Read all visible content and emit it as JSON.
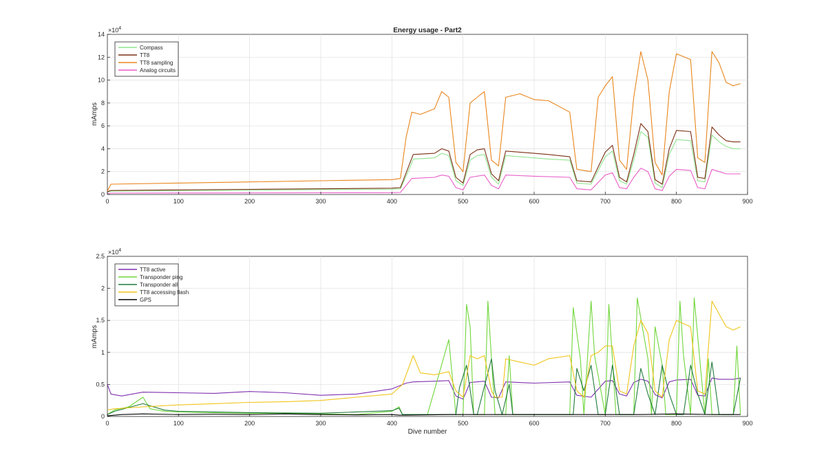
{
  "chart_data": [
    {
      "type": "line",
      "title": "Energy usage - Part2",
      "xlabel": "",
      "ylabel": "mAmps",
      "exponent_label": "×10",
      "exponent_power": "4",
      "xlim": [
        0,
        900
      ],
      "ylim": [
        0,
        140000
      ],
      "xticks": [
        0,
        100,
        200,
        300,
        400,
        500,
        600,
        700,
        800,
        900
      ],
      "yticks": [
        0,
        20000,
        40000,
        60000,
        80000,
        100000,
        120000,
        140000
      ],
      "ytick_labels": [
        "0",
        "2",
        "4",
        "6",
        "8",
        "10",
        "12",
        "14"
      ],
      "grid": true,
      "legend_position": "top-left",
      "series": [
        {
          "name": "Compass",
          "color": "#8fe38f",
          "x": [
            0,
            5,
            100,
            200,
            300,
            400,
            412,
            425,
            430,
            460,
            470,
            480,
            490,
            500,
            510,
            520,
            530,
            540,
            550,
            560,
            580,
            600,
            620,
            650,
            660,
            680,
            700,
            710,
            720,
            730,
            740,
            750,
            760,
            770,
            780,
            790,
            800,
            820,
            830,
            840,
            850,
            860,
            870,
            880,
            890
          ],
          "y": [
            2000,
            3000,
            3300,
            3700,
            4300,
            4500,
            5000,
            23000,
            31000,
            32000,
            36000,
            34000,
            12000,
            8000,
            30000,
            34000,
            35000,
            15000,
            9000,
            34000,
            33000,
            32000,
            31000,
            30000,
            10000,
            9000,
            33000,
            38000,
            12000,
            9000,
            30000,
            55000,
            50000,
            10000,
            6000,
            35000,
            48000,
            47000,
            12000,
            11000,
            52000,
            46000,
            42000,
            40000,
            40000
          ]
        },
        {
          "name": "TT8",
          "color": "#7a2e12",
          "x": [
            0,
            5,
            100,
            200,
            300,
            400,
            412,
            425,
            430,
            460,
            470,
            480,
            490,
            500,
            510,
            520,
            530,
            540,
            550,
            560,
            580,
            600,
            620,
            650,
            660,
            680,
            700,
            710,
            720,
            730,
            740,
            750,
            760,
            770,
            780,
            790,
            800,
            820,
            830,
            840,
            850,
            860,
            870,
            880,
            890
          ],
          "y": [
            2500,
            3500,
            4000,
            4500,
            5000,
            5500,
            6000,
            27000,
            35000,
            36000,
            40000,
            38000,
            15000,
            10000,
            35000,
            39000,
            40000,
            18000,
            12000,
            38000,
            37000,
            36000,
            35000,
            33000,
            12000,
            11000,
            37000,
            43000,
            15000,
            11000,
            35000,
            62000,
            55000,
            13000,
            9000,
            40000,
            56000,
            55000,
            15000,
            14000,
            59000,
            52000,
            47000,
            46000,
            46000
          ]
        },
        {
          "name": "TT8 sampling",
          "color": "#e8851a",
          "x": [
            0,
            5,
            100,
            200,
            300,
            400,
            412,
            420,
            428,
            440,
            460,
            470,
            480,
            490,
            500,
            510,
            520,
            530,
            540,
            550,
            560,
            580,
            600,
            620,
            650,
            660,
            680,
            690,
            700,
            710,
            720,
            730,
            740,
            750,
            760,
            770,
            780,
            790,
            800,
            820,
            830,
            840,
            850,
            860,
            870,
            880,
            890
          ],
          "y": [
            3000,
            9000,
            10000,
            11000,
            12000,
            13000,
            14000,
            50000,
            72000,
            70000,
            75000,
            90000,
            85000,
            28000,
            20000,
            80000,
            85000,
            90000,
            30000,
            25000,
            85000,
            88000,
            83000,
            82000,
            72000,
            22000,
            20000,
            85000,
            95000,
            103000,
            30000,
            22000,
            85000,
            125000,
            100000,
            28000,
            17000,
            90000,
            123000,
            118000,
            32000,
            28000,
            125000,
            115000,
            98000,
            95000,
            97000
          ]
        },
        {
          "name": "Analog circuits",
          "color": "#e85cc8",
          "x": [
            0,
            5,
            100,
            200,
            300,
            400,
            412,
            428,
            460,
            470,
            480,
            490,
            500,
            510,
            530,
            540,
            550,
            560,
            600,
            650,
            660,
            680,
            700,
            710,
            720,
            730,
            740,
            750,
            760,
            770,
            780,
            790,
            800,
            820,
            830,
            840,
            850,
            860,
            870,
            880,
            890
          ],
          "y": [
            800,
            1200,
            1300,
            1400,
            1500,
            1600,
            1800,
            14000,
            15000,
            17000,
            16000,
            6000,
            4000,
            15000,
            17000,
            8000,
            5000,
            17000,
            16000,
            15000,
            5000,
            4000,
            17000,
            19000,
            6000,
            5000,
            15000,
            23000,
            20000,
            5000,
            3500,
            16000,
            22000,
            21000,
            6000,
            5000,
            22000,
            20000,
            18000,
            18000,
            18000
          ]
        }
      ]
    },
    {
      "type": "line",
      "title": "",
      "xlabel": "Dive number",
      "ylabel": "mAmps",
      "exponent_label": "×10",
      "exponent_power": "4",
      "xlim": [
        0,
        900
      ],
      "ylim": [
        0,
        25000
      ],
      "xticks": [
        0,
        100,
        200,
        300,
        400,
        500,
        600,
        700,
        800,
        900
      ],
      "yticks": [
        0,
        5000,
        10000,
        15000,
        20000,
        25000
      ],
      "ytick_labels": [
        "0",
        "0.5",
        "1",
        "1.5",
        "2",
        "2.5"
      ],
      "grid": true,
      "legend_position": "top-left",
      "series": [
        {
          "name": "TT8 active",
          "color": "#7e2fb0",
          "x": [
            0,
            5,
            20,
            50,
            100,
            150,
            200,
            250,
            300,
            350,
            400,
            420,
            430,
            460,
            480,
            490,
            500,
            510,
            530,
            540,
            550,
            560,
            600,
            650,
            660,
            680,
            700,
            710,
            720,
            730,
            740,
            750,
            760,
            770,
            780,
            790,
            800,
            820,
            830,
            840,
            850,
            860,
            880,
            890
          ],
          "y": [
            5000,
            3500,
            3200,
            3800,
            3700,
            3600,
            3900,
            3700,
            3300,
            3500,
            4300,
            5200,
            5400,
            5500,
            5600,
            3200,
            2700,
            5300,
            5500,
            3000,
            2900,
            5400,
            5200,
            5400,
            3300,
            3000,
            5500,
            5600,
            3500,
            3200,
            5300,
            5800,
            5500,
            3400,
            2900,
            5400,
            5700,
            5800,
            3300,
            3200,
            6000,
            5800,
            5800,
            6000
          ]
        },
        {
          "name": "Transponder ping",
          "color": "#6fd63a",
          "x": [
            0,
            10,
            30,
            50,
            60,
            80,
            100,
            150,
            200,
            250,
            300,
            350,
            400,
            410,
            415,
            450,
            480,
            490,
            500,
            505,
            510,
            515,
            530,
            535,
            540,
            545,
            560,
            565,
            570,
            650,
            655,
            665,
            670,
            680,
            685,
            700,
            705,
            710,
            715,
            740,
            745,
            760,
            765,
            770,
            780,
            785,
            800,
            805,
            810,
            820,
            825,
            840,
            845,
            850,
            855,
            880,
            885,
            890
          ],
          "y": [
            300,
            1000,
            1500,
            3000,
            1200,
            800,
            700,
            600,
            500,
            500,
            400,
            300,
            800,
            1500,
            300,
            300,
            12000,
            300,
            300,
            17500,
            14000,
            300,
            300,
            18000,
            9000,
            300,
            300,
            9500,
            300,
            300,
            17000,
            9000,
            300,
            18000,
            9500,
            300,
            17500,
            9000,
            300,
            300,
            18500,
            9000,
            300,
            14000,
            8000,
            300,
            300,
            18000,
            9500,
            300,
            18500,
            300,
            9000,
            300,
            300,
            300,
            11000,
            300
          ]
        },
        {
          "name": "Transponder all",
          "color": "#1f7a3a",
          "x": [
            0,
            10,
            50,
            80,
            100,
            200,
            300,
            400,
            410,
            415,
            490,
            495,
            505,
            515,
            520,
            540,
            545,
            555,
            565,
            570,
            655,
            660,
            670,
            680,
            690,
            700,
            710,
            720,
            740,
            750,
            760,
            770,
            780,
            790,
            800,
            810,
            820,
            830,
            840,
            850,
            860,
            880,
            890
          ],
          "y": [
            300,
            800,
            2000,
            1000,
            800,
            600,
            500,
            900,
            1300,
            300,
            300,
            4500,
            8000,
            300,
            300,
            9000,
            4000,
            300,
            5000,
            300,
            300,
            7500,
            4000,
            8000,
            300,
            300,
            8000,
            300,
            300,
            7500,
            3500,
            300,
            8000,
            3500,
            300,
            300,
            8000,
            3500,
            300,
            8500,
            300,
            300,
            6000
          ]
        },
        {
          "name": "TT8 accessing flash",
          "color": "#f0c419",
          "x": [
            0,
            10,
            50,
            100,
            150,
            200,
            250,
            300,
            350,
            400,
            415,
            430,
            440,
            460,
            480,
            490,
            500,
            510,
            520,
            530,
            540,
            545,
            555,
            560,
            580,
            600,
            620,
            650,
            660,
            670,
            680,
            690,
            700,
            710,
            720,
            730,
            740,
            750,
            760,
            770,
            780,
            790,
            800,
            820,
            830,
            840,
            850,
            860,
            870,
            880,
            890
          ],
          "y": [
            1000,
            1200,
            1500,
            1800,
            2000,
            2200,
            2300,
            2500,
            3000,
            3500,
            5000,
            9500,
            6800,
            6500,
            7000,
            4000,
            3000,
            9500,
            9000,
            9500,
            4000,
            3000,
            3000,
            9000,
            8500,
            8000,
            9000,
            9500,
            4000,
            3000,
            9500,
            10000,
            11000,
            11000,
            4000,
            3500,
            11000,
            15000,
            13000,
            4000,
            3000,
            12000,
            15000,
            14000,
            4000,
            3500,
            18000,
            16000,
            14000,
            13500,
            14000
          ]
        },
        {
          "name": "GPS",
          "color": "#000000",
          "x": [
            0,
            20,
            50,
            100,
            150,
            200,
            250,
            300,
            350,
            400,
            410,
            420,
            480,
            500,
            520,
            600,
            650,
            700,
            750,
            800,
            850,
            890
          ],
          "y": [
            100,
            300,
            400,
            300,
            350,
            300,
            400,
            300,
            250,
            300,
            200,
            200,
            300,
            300,
            300,
            300,
            300,
            300,
            300,
            400,
            300,
            300
          ]
        }
      ]
    }
  ]
}
